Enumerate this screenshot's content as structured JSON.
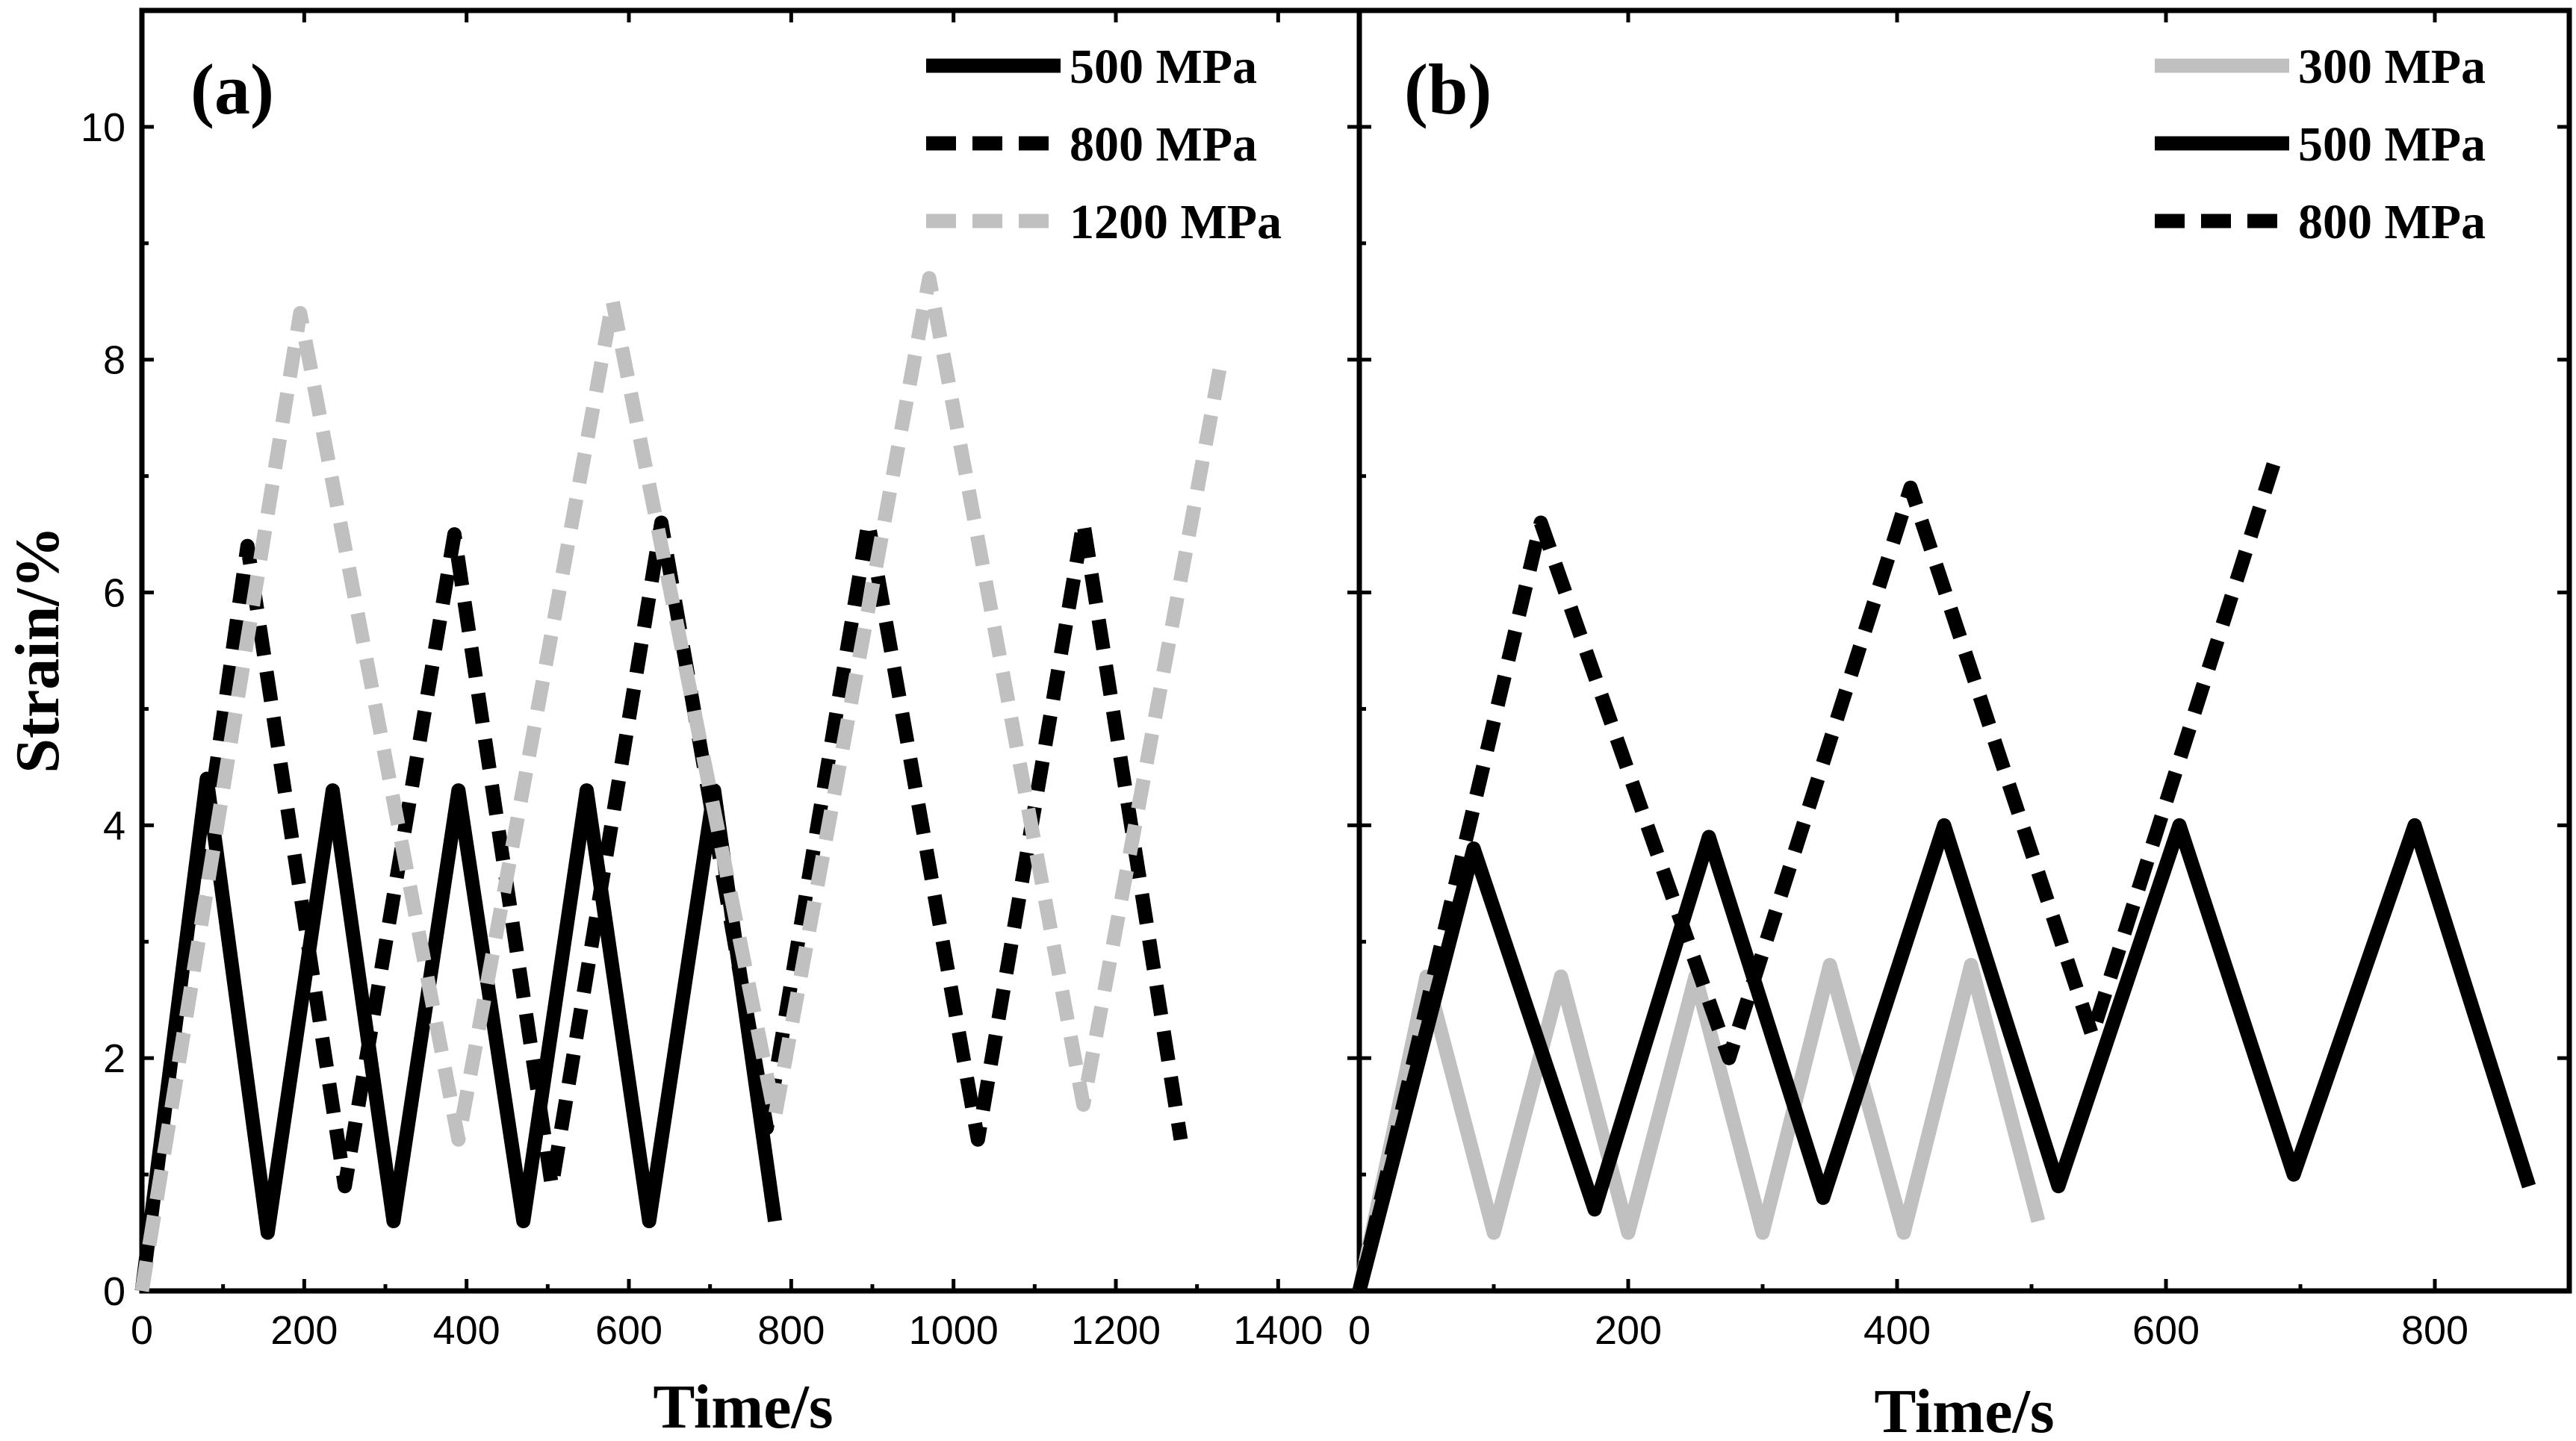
{
  "figure": {
    "ylabel": "Strain/%"
  },
  "chart_data": [
    {
      "type": "line",
      "panel": "(a)",
      "xlabel": "Time/s",
      "ylabel": "Strain/%",
      "xlim": [
        0,
        1500
      ],
      "ylim": [
        0,
        11
      ],
      "xticks": [
        0,
        200,
        400,
        600,
        800,
        1000,
        1200,
        1400
      ],
      "yticks": [
        0,
        2,
        4,
        6,
        8,
        10
      ],
      "legend_position": "top-right",
      "series": [
        {
          "name": "500 MPa",
          "color": "#000000",
          "dash": "solid",
          "x": [
            0,
            80,
            155,
            235,
            310,
            390,
            470,
            548,
            625,
            705,
            780
          ],
          "y": [
            0,
            4.4,
            0.5,
            4.3,
            0.6,
            4.3,
            0.6,
            4.3,
            0.6,
            4.3,
            0.6
          ]
        },
        {
          "name": "800 MPa",
          "color": "#000000",
          "dash": "dashed",
          "x": [
            0,
            130,
            250,
            385,
            505,
            640,
            770,
            895,
            1030,
            1160,
            1280
          ],
          "y": [
            0,
            6.4,
            0.9,
            6.5,
            0.9,
            6.6,
            1.4,
            6.6,
            1.3,
            6.6,
            1.3
          ]
        },
        {
          "name": "1200 MPa",
          "color": "#c0c0c0",
          "dash": "dashed",
          "x": [
            0,
            195,
            390,
            580,
            780,
            970,
            1160,
            1330
          ],
          "y": [
            0,
            8.4,
            1.3,
            8.5,
            1.5,
            8.7,
            1.6,
            8.0
          ]
        }
      ]
    },
    {
      "type": "line",
      "panel": "(b)",
      "xlabel": "Time/s",
      "xlim": [
        0,
        900
      ],
      "ylim": [
        0,
        11
      ],
      "xticks": [
        0,
        200,
        400,
        600,
        800
      ],
      "yticks": [
        0,
        2,
        4,
        6,
        8,
        10
      ],
      "legend_position": "top-right",
      "series": [
        {
          "name": "300 MPa",
          "color": "#c0c0c0",
          "dash": "solid",
          "x": [
            0,
            50,
            100,
            150,
            200,
            250,
            300,
            350,
            405,
            455,
            505
          ],
          "y": [
            0,
            2.7,
            0.5,
            2.7,
            0.5,
            2.7,
            0.5,
            2.8,
            0.5,
            2.8,
            0.6
          ]
        },
        {
          "name": "500 MPa",
          "color": "#000000",
          "dash": "solid",
          "x": [
            0,
            85,
            175,
            260,
            345,
            435,
            520,
            610,
            695,
            785,
            870
          ],
          "y": [
            0,
            3.8,
            0.7,
            3.9,
            0.8,
            4.0,
            0.9,
            4.0,
            1.0,
            4.0,
            0.9
          ]
        },
        {
          "name": "800 MPa",
          "color": "#000000",
          "dash": "dashed",
          "x": [
            0,
            135,
            275,
            410,
            545,
            680
          ],
          "y": [
            0,
            6.6,
            2.0,
            6.9,
            2.2,
            7.1
          ]
        }
      ]
    }
  ]
}
